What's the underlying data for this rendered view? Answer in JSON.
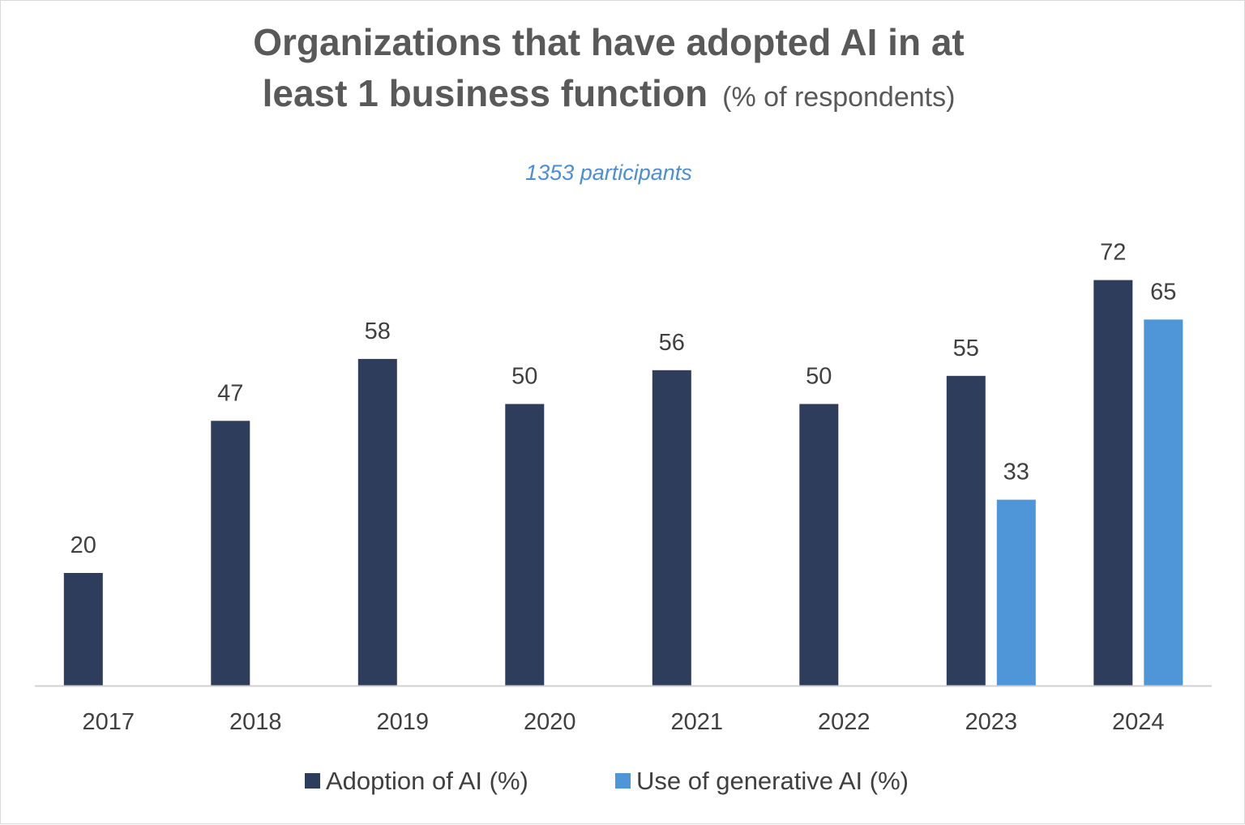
{
  "chart_data": {
    "type": "bar",
    "title_bold": "Organizations that have adopted AI in at",
    "title_bold_line2": "least 1 business function",
    "title_suffix": "(% of respondents)",
    "subtitle": "1353 participants",
    "categories": [
      "2017",
      "2018",
      "2019",
      "2020",
      "2021",
      "2022",
      "2023",
      "2024"
    ],
    "series": [
      {
        "name": "Adoption of AI (%)",
        "color": "#2e3d5c",
        "values": [
          20,
          47,
          58,
          50,
          56,
          50,
          55,
          72
        ]
      },
      {
        "name": "Use of generative AI (%)",
        "color": "#4f96d9",
        "values": [
          null,
          null,
          null,
          null,
          null,
          null,
          33,
          65
        ]
      }
    ],
    "ylim": [
      0,
      80
    ],
    "grid": false,
    "legend_position": "bottom",
    "xlabel": "",
    "ylabel": ""
  }
}
